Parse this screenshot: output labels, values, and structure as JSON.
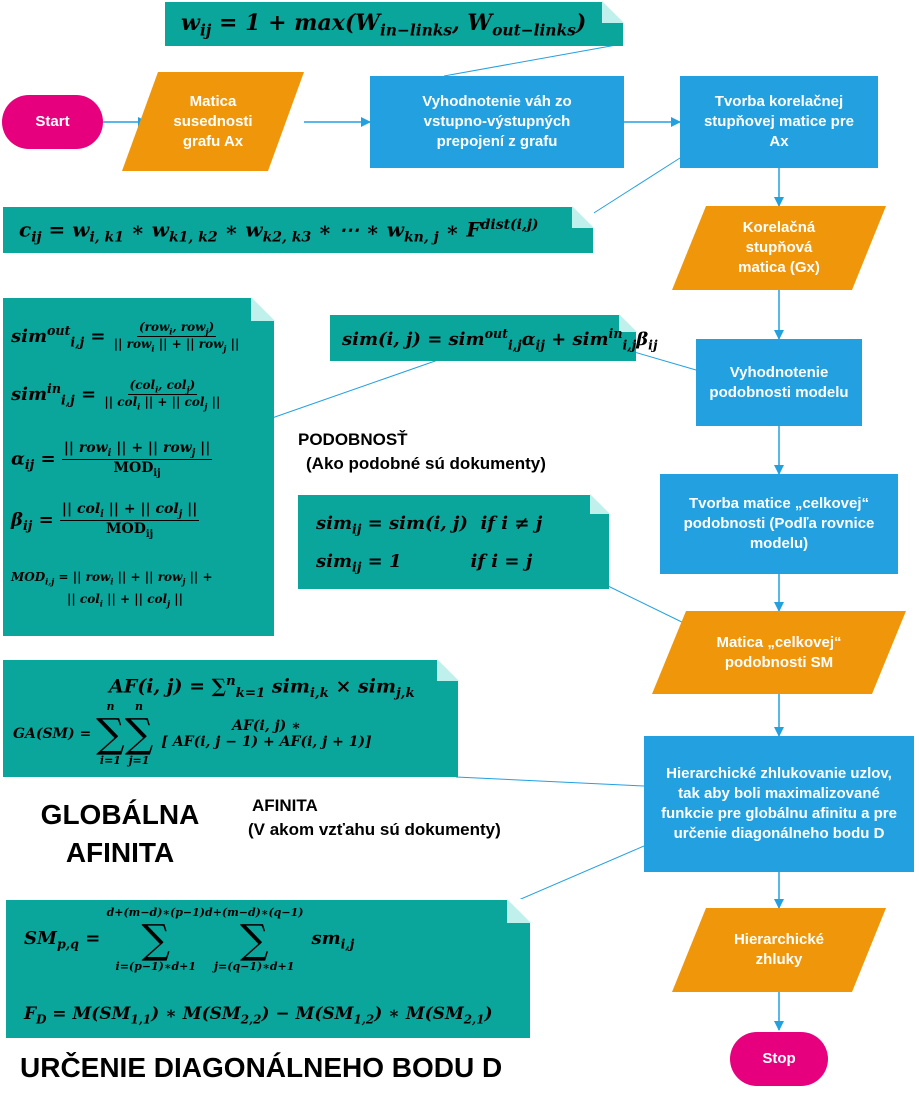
{
  "nodes": {
    "start": "Start",
    "adjacency": "Matica susednosti grafu Ax",
    "weights": "Vyhodnotenie váh zo vstupno-výstupných prepojení z grafu",
    "corr_build": "Tvorba korelačnej stupňovej matice pre Ax",
    "corr_matrix": "Korelačná stupňová matica (Gx)",
    "similarity_eval": "Vyhodnotenie podobnosti modelu",
    "total_build": "Tvorba matice „celkovej“ podobnosti (Podľa rovnice modelu)",
    "total_matrix": "Matica „celkovej“ podobnosti SM",
    "clustering": "Hierarchické zhlukovanie uzlov, tak aby boli maximalizované funkcie pre globálnu afinitu a pre určenie diagonálneho bodu D",
    "clusters": "Hierarchické zhluky",
    "stop": "Stop"
  },
  "captions": {
    "similarity_title": "PODOBNOSŤ",
    "similarity_sub": "(Ako podobné sú dokumenty)",
    "global_affinity": "GLOBÁLNA AFINITA",
    "affinity_title": "AFINITA",
    "affinity_sub": "(V akom vzťahu sú dokumenty)",
    "diagonal": "URČENIE DIAGONÁLNEHO BODU D"
  },
  "colors": {
    "process": "#23a0e0",
    "io": "#f0960a",
    "terminal": "#e6007e",
    "note": "#0aa59b",
    "connector": "#23a0e0"
  }
}
